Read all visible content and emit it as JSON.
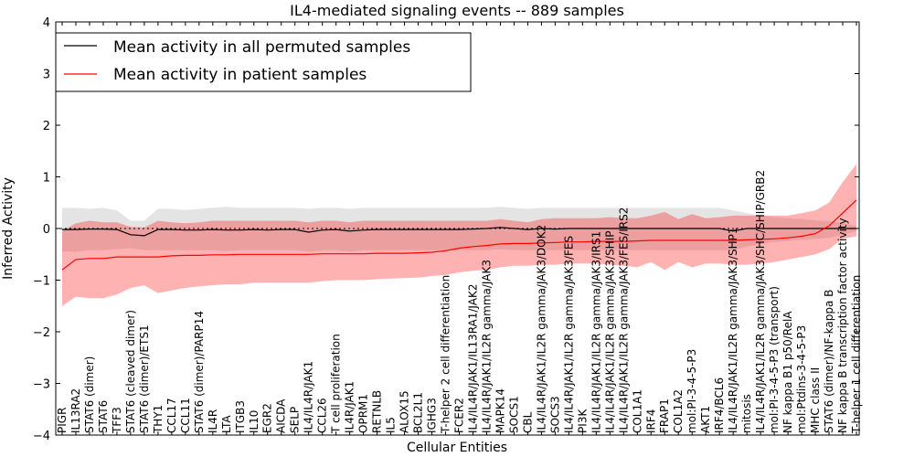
{
  "chart_data": {
    "type": "line",
    "title": "IL4-mediated signaling events -- 889 samples",
    "xlabel": "Cellular Entities",
    "ylabel": "Inferred Activity",
    "ylim": [
      -4,
      4
    ],
    "yticks": [
      -4,
      -3,
      -2,
      -1,
      0,
      1,
      2,
      3,
      4
    ],
    "legend_position": "upper-left",
    "categories": [
      "PIGR",
      "IL13RA2",
      "STAT6 (dimer)",
      "STAT6",
      "TFF3",
      "STAT6 (cleaved dimer)",
      "STAT6 (dimer)/ETS1",
      "THY1",
      "CCL17",
      "CCL11",
      "STAT6 (dimer)/PARP14",
      "IL4R",
      "LTA",
      "ITGB3",
      "IL10",
      "EGR2",
      "AICDA",
      "SELP",
      "IL4/IL4R/JAK1",
      "CCL26",
      "T cell proliferation",
      "IL4R/JAK1",
      "OPRM1",
      "RETNLB",
      "IL5",
      "ALOX15",
      "BCL2L1",
      "IGHG3",
      "T-helper 2 cell differentiation",
      "FCER2",
      "IL4/IL4R/JAK1/IL13RA1/JAK2",
      "IL4/IL4R/JAK1/IL2R gamma/JAK3",
      "MAPK14",
      "SOCS1",
      "CBL",
      "IL4/IL4R/JAK1/IL2R gamma/JAK3/DOK2",
      "SOCS3",
      "IL4/IL4R/JAK1/IL2R gamma/JAK3/FES",
      "PI3K",
      "IL4/IL4R/JAK1/IL2R gamma/JAK3/IRS1",
      "IL4/IL4R/JAK1/IL2R gamma/JAK3/SHIP",
      "IL4/IL4R/JAK1/IL2R gamma/JAK3/FES/IRS2",
      "COL1A1",
      "IRF4",
      "FRAP1",
      "COL1A2",
      "mol:PI-3-4-5-P3",
      "AKT1",
      "IRF4/BCL6",
      "IL4/IL4R/JAK1/IL2R gamma/JAK3/SHP1",
      "mitosis",
      "IL4/IL4R/JAK1/IL2R gamma/JAK3/SHC/SHIP/GRB2",
      "mol:PI-3-4-5-P3 (transport)",
      "NF kappa B1 p50/RelA",
      "mol:Ptdins-3-4-5-P3",
      "MHC class II",
      "STAT6 (dimer)/NF-kappa B",
      "NF kappa B transcription factor activity",
      "T-helper 1 cell differentiation"
    ],
    "series": [
      {
        "name": "Mean activity in all permuted samples",
        "color": "#000000",
        "values": [
          -0.02,
          -0.02,
          -0.01,
          -0.01,
          -0.02,
          -0.12,
          -0.14,
          -0.02,
          -0.02,
          -0.03,
          -0.03,
          -0.02,
          -0.03,
          -0.03,
          -0.02,
          -0.03,
          -0.02,
          -0.02,
          -0.07,
          -0.03,
          -0.02,
          -0.05,
          -0.03,
          -0.02,
          -0.02,
          -0.02,
          -0.02,
          -0.02,
          -0.02,
          -0.02,
          -0.01,
          0.0,
          0.02,
          0.0,
          -0.02,
          0.0,
          -0.01,
          0.0,
          0.0,
          0.0,
          0.0,
          0.0,
          0.0,
          0.0,
          0.0,
          0.0,
          0.0,
          0.0,
          0.0,
          -0.05,
          0.0,
          0.0,
          0.0,
          0.0,
          0.0,
          0.0,
          0.0,
          0.0,
          0.0
        ],
        "band_upper": [
          0.4,
          0.4,
          0.38,
          0.4,
          0.35,
          0.15,
          0.15,
          0.38,
          0.38,
          0.36,
          0.38,
          0.4,
          0.42,
          0.4,
          0.4,
          0.4,
          0.4,
          0.4,
          0.38,
          0.4,
          0.4,
          0.38,
          0.4,
          0.4,
          0.4,
          0.4,
          0.4,
          0.4,
          0.4,
          0.4,
          0.4,
          0.4,
          0.42,
          0.4,
          0.38,
          0.4,
          0.4,
          0.4,
          0.4,
          0.4,
          0.4,
          0.4,
          0.4,
          0.4,
          0.4,
          0.4,
          0.4,
          0.4,
          0.4,
          0.35,
          0.3,
          0.25,
          0.22,
          0.2,
          0.18,
          0.16,
          0.14,
          0.1,
          0.05
        ],
        "band_lower": [
          -0.45,
          -0.45,
          -0.42,
          -0.42,
          -0.4,
          -0.38,
          -0.42,
          -0.42,
          -0.42,
          -0.42,
          -0.42,
          -0.42,
          -0.44,
          -0.42,
          -0.42,
          -0.42,
          -0.42,
          -0.42,
          -0.45,
          -0.42,
          -0.42,
          -0.45,
          -0.42,
          -0.42,
          -0.42,
          -0.42,
          -0.42,
          -0.42,
          -0.42,
          -0.42,
          -0.42,
          -0.42,
          -0.4,
          -0.42,
          -0.42,
          -0.42,
          -0.42,
          -0.42,
          -0.42,
          -0.42,
          -0.42,
          -0.42,
          -0.42,
          -0.42,
          -0.42,
          -0.42,
          -0.42,
          -0.42,
          -0.42,
          -0.42,
          -0.35,
          -0.3,
          -0.26,
          -0.24,
          -0.22,
          -0.2,
          -0.18,
          -0.12,
          -0.05
        ]
      },
      {
        "name": "Mean activity in patient samples",
        "color": "#ff0000",
        "values": [
          -0.8,
          -0.6,
          -0.58,
          -0.58,
          -0.55,
          -0.55,
          -0.55,
          -0.55,
          -0.53,
          -0.52,
          -0.52,
          -0.51,
          -0.51,
          -0.5,
          -0.5,
          -0.5,
          -0.5,
          -0.5,
          -0.5,
          -0.49,
          -0.49,
          -0.49,
          -0.49,
          -0.48,
          -0.48,
          -0.48,
          -0.47,
          -0.46,
          -0.43,
          -0.38,
          -0.35,
          -0.33,
          -0.3,
          -0.29,
          -0.29,
          -0.28,
          -0.27,
          -0.26,
          -0.26,
          -0.25,
          -0.25,
          -0.25,
          -0.24,
          -0.23,
          -0.23,
          -0.23,
          -0.23,
          -0.23,
          -0.23,
          -0.23,
          -0.22,
          -0.21,
          -0.2,
          -0.18,
          -0.15,
          -0.1,
          0.05,
          0.3,
          0.55
        ],
        "band_upper": [
          -0.05,
          0.1,
          0.15,
          0.12,
          0.12,
          0.03,
          0.02,
          0.15,
          0.12,
          0.1,
          0.12,
          0.15,
          0.15,
          0.15,
          0.15,
          0.15,
          0.15,
          0.15,
          0.12,
          0.15,
          0.15,
          0.12,
          0.15,
          0.15,
          0.15,
          0.15,
          0.15,
          0.15,
          0.15,
          0.15,
          0.15,
          0.15,
          0.18,
          0.15,
          0.12,
          0.18,
          0.2,
          0.2,
          0.2,
          0.2,
          0.22,
          0.2,
          0.2,
          0.25,
          0.32,
          0.18,
          0.28,
          0.2,
          0.22,
          0.25,
          0.25,
          0.25,
          0.25,
          0.25,
          0.3,
          0.35,
          0.5,
          0.9,
          1.25
        ],
        "band_lower": [
          -1.5,
          -1.32,
          -1.35,
          -1.35,
          -1.28,
          -1.15,
          -1.1,
          -1.25,
          -1.2,
          -1.15,
          -1.12,
          -1.1,
          -1.08,
          -1.08,
          -1.05,
          -1.05,
          -1.05,
          -1.05,
          -1.05,
          -1.02,
          -1.0,
          -1.0,
          -1.0,
          -0.98,
          -0.97,
          -0.96,
          -0.95,
          -0.92,
          -0.9,
          -0.85,
          -0.82,
          -0.8,
          -0.75,
          -0.72,
          -0.72,
          -0.7,
          -0.7,
          -0.68,
          -0.68,
          -0.68,
          -0.7,
          -0.72,
          -0.75,
          -0.65,
          -0.8,
          -0.65,
          -0.75,
          -0.68,
          -0.68,
          -0.7,
          -0.7,
          -0.68,
          -0.65,
          -0.6,
          -0.55,
          -0.5,
          -0.4,
          -0.2,
          -0.15
        ]
      }
    ]
  }
}
